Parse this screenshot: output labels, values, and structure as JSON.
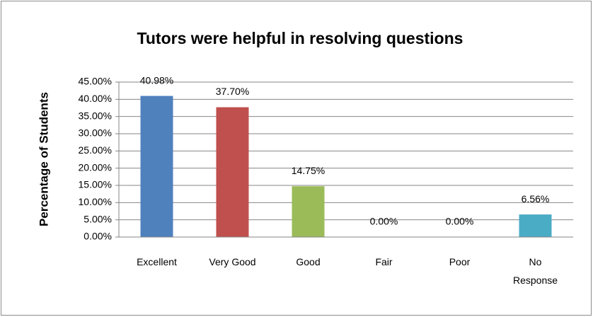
{
  "chart_data": {
    "type": "bar",
    "title": "Tutors were helpful in resolving questions",
    "y_label": "Percentage of Students",
    "categories": [
      "Excellent",
      "Very Good",
      "Good",
      "Fair",
      "Poor",
      "No Response"
    ],
    "values": [
      40.98,
      37.7,
      14.75,
      0,
      0,
      6.56
    ],
    "value_labels": [
      "40.98%",
      "37.70%",
      "14.75%",
      "0.00%",
      "0.00%",
      "6.56%"
    ],
    "colors": [
      "#4f81bd",
      "#c0504d",
      "#9bbb59",
      "#8064a2",
      "#f79646",
      "#4bacc6"
    ],
    "ylim": [
      0,
      45
    ],
    "yticks": [
      {
        "value": 0,
        "label": "0.00%"
      },
      {
        "value": 5,
        "label": "5.00%"
      },
      {
        "value": 10,
        "label": "10.00%"
      },
      {
        "value": 15,
        "label": "15.00%"
      },
      {
        "value": 20,
        "label": "20.00%"
      },
      {
        "value": 25,
        "label": "25.00%"
      },
      {
        "value": 30,
        "label": "30.00%"
      },
      {
        "value": 35,
        "label": "35.00%"
      },
      {
        "value": 40,
        "label": "40.00%"
      },
      {
        "value": 45,
        "label": "45.00%"
      }
    ],
    "grid": true
  }
}
